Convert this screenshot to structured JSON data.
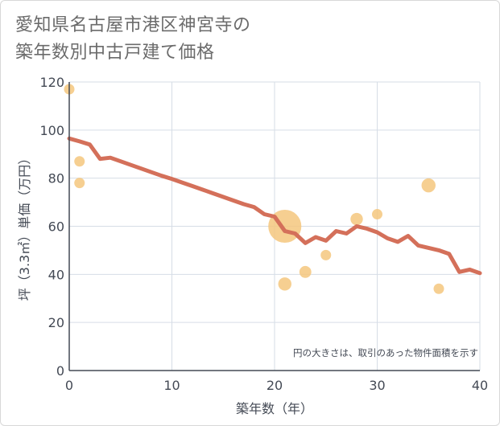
{
  "title": {
    "line1": "愛知県名古屋市港区神宮寺の",
    "line2": "築年数別中古戸建て価格"
  },
  "chart_data": {
    "type": "scatter",
    "title": "愛知県名古屋市港区神宮寺の築年数別中古戸建て価格",
    "xlabel": "築年数（年）",
    "ylabel": "坪（3.3㎡）単価（万円）",
    "xlim": [
      0,
      40
    ],
    "ylim": [
      0,
      120
    ],
    "xticks": [
      0,
      10,
      20,
      30,
      40
    ],
    "yticks": [
      0,
      20,
      40,
      60,
      80,
      100,
      120
    ],
    "grid": true,
    "annotation": "円の大きさは、取引のあった物件面積を示す",
    "colors": {
      "bubble": "#f5c77e",
      "line": "#d4705a",
      "grid": "#d6dde6",
      "axis": "#444a55"
    },
    "bubbles": [
      {
        "x": 0,
        "y": 117,
        "size": 1
      },
      {
        "x": 1,
        "y": 87,
        "size": 1
      },
      {
        "x": 1,
        "y": 78,
        "size": 1
      },
      {
        "x": 21,
        "y": 60,
        "size": 10
      },
      {
        "x": 21,
        "y": 36,
        "size": 1.6
      },
      {
        "x": 23,
        "y": 41,
        "size": 1.3
      },
      {
        "x": 25,
        "y": 48,
        "size": 1
      },
      {
        "x": 28,
        "y": 63,
        "size": 1.4
      },
      {
        "x": 30,
        "y": 65,
        "size": 1
      },
      {
        "x": 35,
        "y": 77,
        "size": 1.8
      },
      {
        "x": 36,
        "y": 34,
        "size": 1
      }
    ],
    "trend": {
      "x": [
        0,
        1,
        2,
        3,
        4,
        5,
        6,
        7,
        8,
        9,
        10,
        11,
        12,
        13,
        14,
        15,
        16,
        17,
        18,
        19,
        20,
        21,
        22,
        23,
        24,
        25,
        26,
        27,
        28,
        29,
        30,
        31,
        32,
        33,
        34,
        35,
        36,
        37,
        38,
        39,
        40
      ],
      "y": [
        96.5,
        95.3,
        94,
        88,
        88.5,
        87,
        85.5,
        84,
        82.5,
        81,
        79.7,
        78.2,
        76.7,
        75.2,
        73.7,
        72.2,
        70.7,
        69.2,
        68,
        65,
        64,
        58,
        57,
        53,
        55.5,
        54,
        58,
        57,
        60,
        59,
        57.5,
        55,
        53.5,
        56,
        52,
        51,
        50,
        48.5,
        41,
        42,
        40.5
      ]
    }
  }
}
